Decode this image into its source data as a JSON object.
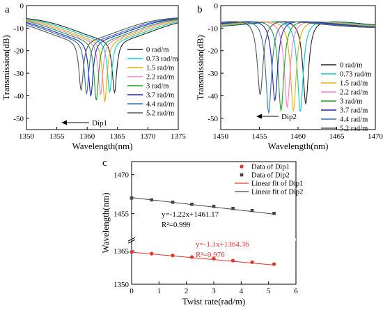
{
  "legend_labels": [
    "0 rad/m",
    "0.73 rad/m",
    "1.5 rad/m",
    "2.2 rad/m",
    "3 rad/m",
    "3.7 rad/m",
    "4.4 rad/m",
    "5.2 rad/m"
  ],
  "series_colors": [
    "#222222",
    "#00cccc",
    "#e0b000",
    "#ff7ac8",
    "#1aa31a",
    "#1e1ed2",
    "#2f6fb4",
    "#555555"
  ],
  "chart_data": [
    {
      "type": "line",
      "panel_label": "a",
      "xlabel": "Wavelength(nm)",
      "ylabel": "Transmission(dB)",
      "xlim": [
        1350,
        1375
      ],
      "ylim": [
        -55,
        0
      ],
      "xticks": [
        1350,
        1355,
        1360,
        1365,
        1370,
        1375
      ],
      "yticks": [
        0,
        -10,
        -20,
        -30,
        -40,
        -50
      ],
      "annotation": "Dip1",
      "dip_wavelengths": [
        1364.5,
        1363.7,
        1362.9,
        1362.2,
        1361.5,
        1360.6,
        1359.9,
        1359.0
      ],
      "dip_depths": [
        -38.5,
        -38.5,
        -42.5,
        -39.5,
        -42.0,
        -40.0,
        -39.0,
        -37.5
      ],
      "baseline_db": -5,
      "shoulder_db": -15
    },
    {
      "type": "line",
      "panel_label": "b",
      "xlabel": "Wavelength(nm)",
      "ylabel": "Transmission(dB)",
      "xlim": [
        1450,
        1470
      ],
      "ylim": [
        -55,
        0
      ],
      "xticks": [
        1450,
        1455,
        1460,
        1465,
        1470
      ],
      "yticks": [
        0,
        -10,
        -20,
        -30,
        -40,
        -50
      ],
      "annotation": "Dip2",
      "dip_wavelengths": [
        1461.0,
        1460.3,
        1459.4,
        1458.6,
        1457.8,
        1457.0,
        1456.2,
        1455.1
      ],
      "dip_depths": [
        -43.5,
        -47.0,
        -46.5,
        -45.0,
        -46.5,
        -42.0,
        -47.5,
        -39.5
      ],
      "baseline_db": -10,
      "shoulder_db": -6
    },
    {
      "type": "scatter",
      "panel_label": "c",
      "xlabel": "Twist rate(rad/m)",
      "ylabel": "Wavelength(nm)",
      "xlim": [
        0,
        6
      ],
      "ylim": [
        1350,
        1475
      ],
      "xticks": [
        0,
        1,
        2,
        3,
        4,
        5,
        6
      ],
      "yticks": [
        1350,
        1365,
        1455,
        1470
      ],
      "x": [
        0,
        0.73,
        1.5,
        2.2,
        3,
        3.7,
        4.4,
        5.2
      ],
      "series": [
        {
          "name": "Data of Dip1",
          "color": "#e8302a",
          "marker": "circle",
          "values": [
            1364.5,
            1363.7,
            1362.9,
            1362.2,
            1361.5,
            1360.6,
            1359.9,
            1359.0
          ],
          "fit_label": "Linear fit of Dip1",
          "fit_slope": -1.1,
          "fit_intercept": 1364.36,
          "equation": "y=-1.1x+1364.36",
          "r2": "R²=0.976"
        },
        {
          "name": "Data of Dip2",
          "color": "#444444",
          "marker": "square",
          "values": [
            1461.0,
            1460.3,
            1459.4,
            1458.6,
            1457.8,
            1457.0,
            1456.2,
            1455.1
          ],
          "fit_label": "Linear fit of Dip2",
          "fit_slope": -1.22,
          "fit_intercept": 1461.17,
          "equation": "y=-1.22x+1461.17",
          "r2": "R²=0.999"
        }
      ]
    }
  ]
}
